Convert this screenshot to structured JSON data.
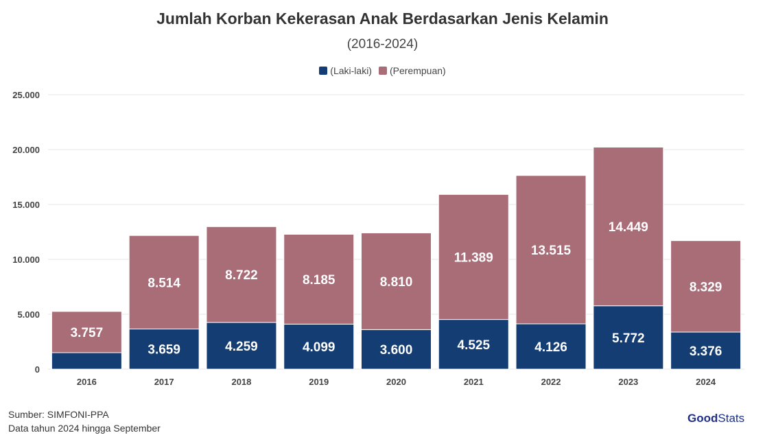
{
  "chart_data": {
    "type": "bar",
    "stacked": true,
    "title": "Jumlah Korban Kekerasan Anak Berdasarkan Jenis Kelamin",
    "subtitle": "(2016-2024)",
    "categories": [
      "2016",
      "2017",
      "2018",
      "2019",
      "2020",
      "2021",
      "2022",
      "2023",
      "2024"
    ],
    "series": [
      {
        "name": "(Laki-laki)",
        "color": "#143d73",
        "values": [
          1500,
          3659,
          4259,
          4099,
          3600,
          4525,
          4126,
          5772,
          3376
        ],
        "labels": [
          "",
          "3.659",
          "4.259",
          "4.099",
          "3.600",
          "4.525",
          "4.126",
          "5.772",
          "3.376"
        ]
      },
      {
        "name": "(Perempuan)",
        "color": "#a96d78",
        "values": [
          3757,
          8514,
          8722,
          8185,
          8810,
          11389,
          13515,
          14449,
          8329
        ],
        "labels": [
          "3.757",
          "8.514",
          "8.722",
          "8.185",
          "8.810",
          "11.389",
          "13.515",
          "14.449",
          "8.329"
        ]
      }
    ],
    "ylim": [
      0,
      25000
    ],
    "yticks": [
      0,
      5000,
      10000,
      15000,
      20000,
      25000
    ],
    "ytick_labels": [
      "0",
      "5.000",
      "10.000",
      "15.000",
      "20.000",
      "25.000"
    ],
    "grid": true,
    "legend": "top-center"
  },
  "footer": {
    "source": "Sumber: SIMFONI-PPA",
    "note": "Data tahun 2024 hingga September"
  },
  "logo": {
    "part1": "Good",
    "part2": "Stats"
  }
}
